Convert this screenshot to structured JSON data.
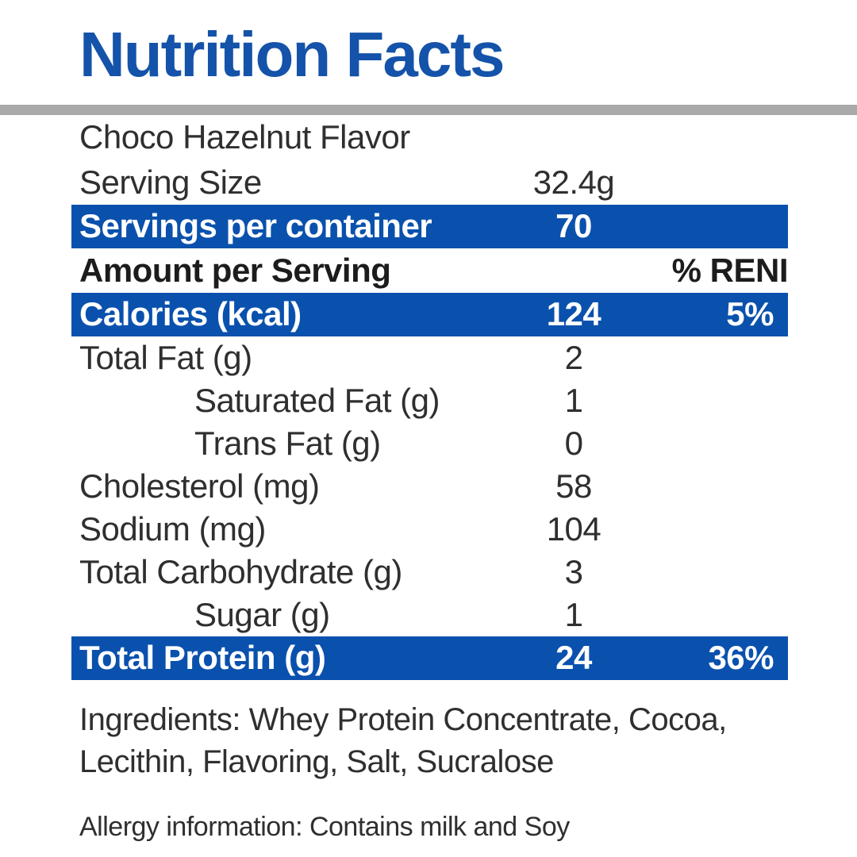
{
  "title": "Nutrition Facts",
  "colors": {
    "title_blue": "#1453a9",
    "bar_blue": "#0a51ad",
    "divider_gray": "#a9a9a9",
    "text_dark": "#2f2f2f"
  },
  "header": {
    "flavor": "Choco Hazelnut Flavor",
    "serving_size_label": "Serving Size",
    "serving_size_value": "32.4g",
    "servings_per_container_label": "Servings per container",
    "servings_per_container_value": "70",
    "amount_per_serving_label": "Amount per Serving",
    "reni_header": "% RENI"
  },
  "rows": [
    {
      "label": "Calories (kcal)",
      "value": "124",
      "percent": "5%"
    },
    {
      "label": "Total Fat (g)",
      "value": "2",
      "percent": ""
    },
    {
      "label": "Saturated Fat (g)",
      "value": "1",
      "percent": ""
    },
    {
      "label": "Trans Fat (g)",
      "value": "0",
      "percent": ""
    },
    {
      "label": "Cholesterol (mg)",
      "value": "58",
      "percent": ""
    },
    {
      "label": "Sodium (mg)",
      "value": "104",
      "percent": ""
    },
    {
      "label": "Total Carbohydrate (g)",
      "value": "3",
      "percent": ""
    },
    {
      "label": "Sugar (g)",
      "value": "1",
      "percent": ""
    },
    {
      "label": "Total Protein (g)",
      "value": "24",
      "percent": "36%"
    }
  ],
  "footer": {
    "ingredients": "Ingredients: Whey Protein Concentrate, Cocoa, Lecithin, Flavoring, Salt, Sucralose",
    "allergy": "Allergy information: Contains milk and Soy"
  }
}
